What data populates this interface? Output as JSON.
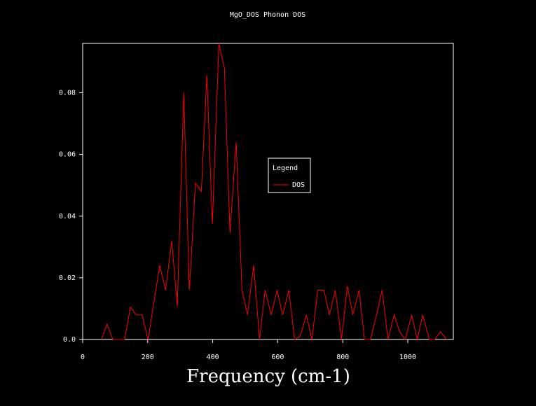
{
  "chart_data": {
    "type": "line",
    "title": "MgO_DOS Phonon DOS",
    "x_label": "Frequency (cm-1)",
    "legend_title": "Legend",
    "series": [
      {
        "name": "DOS",
        "color": "#ff0000",
        "x": [
          58,
          75,
          93,
          129,
          147,
          164,
          183,
          201,
          237,
          255,
          274,
          291,
          311,
          328,
          347,
          365,
          382,
          399,
          419,
          436,
          453,
          472,
          490,
          507,
          526,
          544,
          561,
          580,
          598,
          615,
          634,
          652,
          669,
          688,
          705,
          723,
          742,
          759,
          777,
          796,
          814,
          831,
          850,
          867,
          885,
          904,
          921,
          939,
          958,
          975,
          992,
          1012,
          1029,
          1046,
          1066,
          1083,
          1100,
          1120
        ],
        "values": [
          0,
          0.005,
          0,
          0,
          0.0105,
          0.008,
          0.008,
          0,
          0.024,
          0.016,
          0.032,
          0.0107,
          0.08,
          0.016,
          0.0507,
          0.048,
          0.0857,
          0.0375,
          0.096,
          0.088,
          0.0345,
          0.064,
          0.016,
          0.008,
          0.024,
          0,
          0.016,
          0.008,
          0.016,
          0.008,
          0.016,
          0,
          0.001,
          0.008,
          0,
          0.016,
          0.016,
          0.008,
          0.016,
          0,
          0.0173,
          0.008,
          0.016,
          0,
          0,
          0.008,
          0.016,
          0,
          0.008,
          0.0025,
          0,
          0.008,
          0,
          0.008,
          0,
          0,
          0.0025,
          0
        ]
      }
    ],
    "xlim": [
      0,
      1140
    ],
    "xticks": [
      0,
      200,
      400,
      600,
      800,
      1000
    ],
    "ylim": [
      0,
      0.096
    ],
    "yticks": [
      {
        "value": 0,
        "label": "0.0"
      },
      0.02,
      0.04,
      0.06,
      0.08
    ],
    "grid": false
  }
}
